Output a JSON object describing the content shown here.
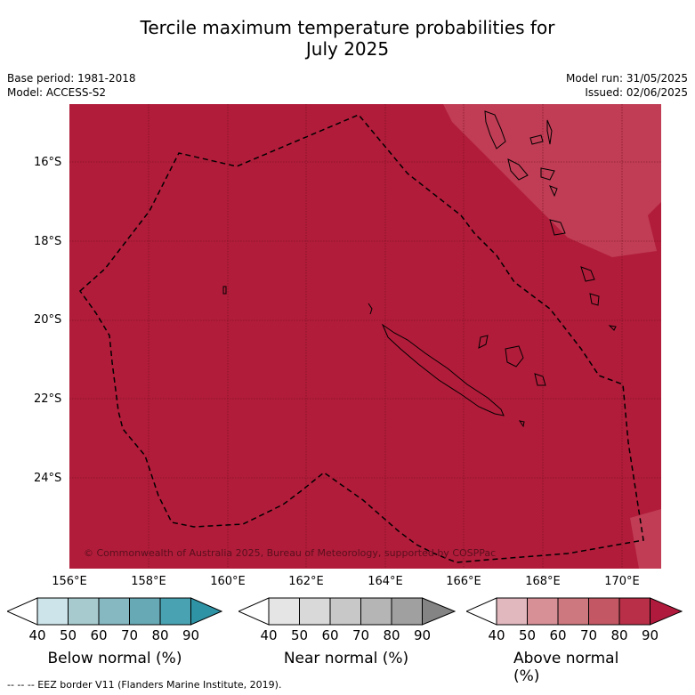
{
  "title_line1": "Tercile maximum temperature probabilities for",
  "title_line2": "July 2025",
  "base_period": "Base period: 1981-2018",
  "model": "Model: ACCESS-S2",
  "model_run": "Model run: 31/05/2025",
  "issued": "Issued: 02/06/2025",
  "lat_labels": [
    "16°S",
    "18°S",
    "20°S",
    "22°S",
    "24°S"
  ],
  "lon_labels": [
    "156°E",
    "158°E",
    "160°E",
    "162°E",
    "164°E",
    "166°E",
    "168°E",
    "170°E"
  ],
  "copyright": "© Commonwealth of Australia 2025, Bureau of Meteorology, supported by COSPPac",
  "colorbars": [
    {
      "label": "Below normal (%)",
      "ticks": [
        "40",
        "50",
        "60",
        "70",
        "80",
        "90"
      ],
      "colors": [
        "#ffffff",
        "#cde5ea",
        "#a6cace",
        "#86b8c2",
        "#68a9b6",
        "#48a2b2",
        "#2e93a5"
      ]
    },
    {
      "label": "Near normal (%)",
      "ticks": [
        "40",
        "50",
        "60",
        "70",
        "80",
        "90"
      ],
      "colors": [
        "#ffffff",
        "#e5e5e5",
        "#d9d9d9",
        "#c8c8c8",
        "#b5b5b5",
        "#a0a0a0",
        "#848484"
      ]
    },
    {
      "label": "Above normal (%)",
      "ticks": [
        "40",
        "50",
        "60",
        "70",
        "80",
        "90"
      ],
      "colors": [
        "#ffffff",
        "#e2b8bf",
        "#d89097",
        "#cd787e",
        "#c35864",
        "#b92f48",
        "#b01a3c"
      ]
    }
  ],
  "footer": "--  --  -- EEZ border V11 (Flanders Marine Institute, 2019).",
  "map_colors": {
    "dominant": "#b11c3a",
    "lighter": "#c03d55",
    "grid": "#6e1020"
  }
}
